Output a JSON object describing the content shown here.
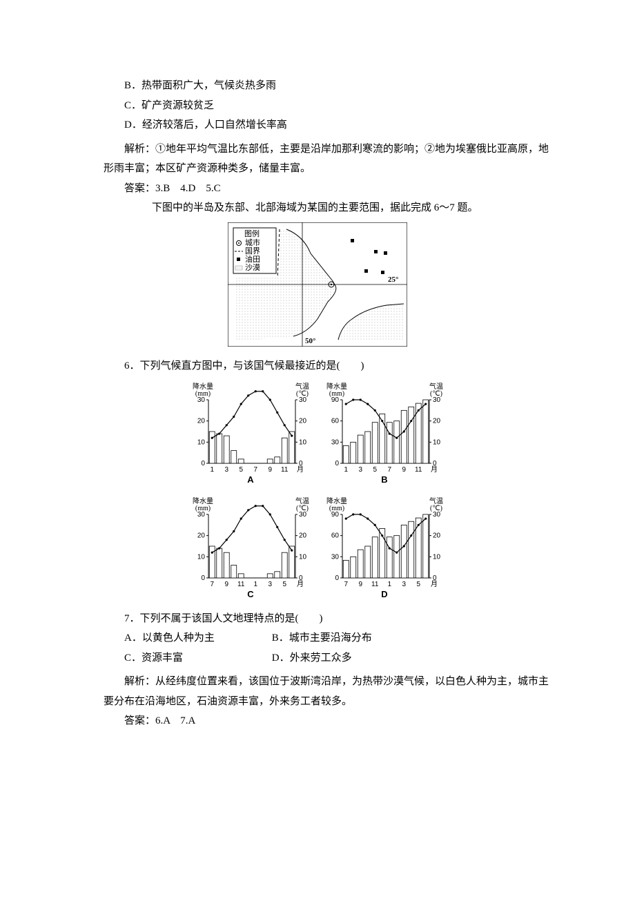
{
  "options_prev": {
    "B": "B．热带面积广大，气候炎热多雨",
    "C": "C．矿产资源较贫乏",
    "D": "D．经济较落后，人口自然增长率高"
  },
  "explain1": "解析：①地年平均气温比东部低，主要是沿岸加那利寒流的影响；②地为埃塞俄比亚高原，地形雨丰富；本区矿产资源种类多，储量丰富。",
  "answers1": "答案：3.B　4.D　5.C",
  "intro67": "下图中的半岛及东部、北部海域为某国的主要范围，据此完成 6～7 题。",
  "map": {
    "legend_title": "图例",
    "legend_items": [
      "城市",
      "国界",
      "油田",
      "沙漠"
    ],
    "lat_label": "25°",
    "lon_label": "50°"
  },
  "q6": "6．下列气候直方图中，与该国气候最接近的是(　　)",
  "charts": {
    "precip_label": "降水量",
    "precip_unit": "(mm)",
    "temp_label": "气温",
    "temp_unit": "(℃)",
    "month_label": "月",
    "A": {
      "label": "A",
      "x_labels": [
        "1",
        "3",
        "5",
        "7",
        "9",
        "11"
      ],
      "y_precip_max": 30,
      "y_precip_ticks": [
        0,
        10,
        20,
        30
      ],
      "y_temp_max": 30,
      "y_temp_ticks": [
        0,
        10,
        20,
        30
      ],
      "precip": [
        15,
        14,
        13,
        6,
        2,
        0,
        0,
        0,
        2,
        3,
        12,
        15
      ],
      "temp": [
        12,
        14,
        18,
        22,
        28,
        32,
        34,
        34,
        30,
        24,
        18,
        13
      ],
      "bar_color": "#ffffff",
      "bar_border": "#000000",
      "line_color": "#000000"
    },
    "B": {
      "label": "B",
      "x_labels": [
        "1",
        "3",
        "5",
        "7",
        "9",
        "11"
      ],
      "y_precip_max": 90,
      "y_precip_ticks": [
        0,
        30,
        60,
        90
      ],
      "y_temp_max": 30,
      "y_temp_ticks": [
        0,
        10,
        20,
        30
      ],
      "precip": [
        25,
        30,
        40,
        45,
        58,
        70,
        58,
        60,
        75,
        80,
        85,
        90
      ],
      "temp": [
        28,
        30,
        30,
        28,
        25,
        20,
        14,
        12,
        15,
        20,
        25,
        28
      ],
      "bar_color": "#ffffff",
      "bar_border": "#000000",
      "line_color": "#000000"
    },
    "C": {
      "label": "C",
      "x_labels": [
        "7",
        "9",
        "11",
        "1",
        "3",
        "5"
      ],
      "y_precip_max": 30,
      "y_precip_ticks": [
        0,
        10,
        20,
        30
      ],
      "y_temp_max": 30,
      "y_temp_ticks": [
        0,
        10,
        20,
        30
      ],
      "precip": [
        15,
        14,
        12,
        6,
        2,
        0,
        0,
        0,
        2,
        3,
        12,
        15
      ],
      "temp": [
        12,
        14,
        18,
        22,
        28,
        32,
        34,
        34,
        30,
        24,
        18,
        13
      ],
      "bar_color": "#ffffff",
      "bar_border": "#000000",
      "line_color": "#000000"
    },
    "D": {
      "label": "D",
      "x_labels": [
        "7",
        "9",
        "11",
        "1",
        "3",
        "5"
      ],
      "y_precip_max": 90,
      "y_precip_ticks": [
        0,
        30,
        60,
        90
      ],
      "y_temp_max": 30,
      "y_temp_ticks": [
        0,
        10,
        20,
        30
      ],
      "precip": [
        25,
        30,
        40,
        45,
        58,
        70,
        58,
        60,
        75,
        80,
        85,
        90
      ],
      "temp": [
        28,
        30,
        30,
        28,
        25,
        20,
        14,
        12,
        15,
        20,
        25,
        28
      ],
      "bar_color": "#ffffff",
      "bar_border": "#000000",
      "line_color": "#000000"
    }
  },
  "q7": "7．下列不属于该国人文地理特点的是(　　)",
  "q7opts": {
    "A": "A．以黄色人种为主",
    "B": "B．城市主要沿海分布",
    "C": "C．资源丰富",
    "D": "D．外来劳工众多"
  },
  "explain2": "解析：从经纬度位置来看，该国位于波斯湾沿岸，为热带沙漠气候，以白色人种为主，城市主要分布在沿海地区，石油资源丰富，外来务工者较多。",
  "answers2": "答案：6.A　7.A"
}
